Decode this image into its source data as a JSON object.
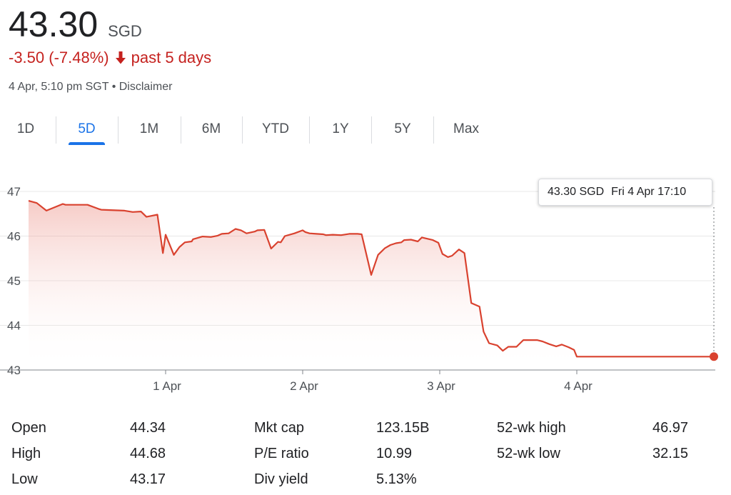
{
  "quote": {
    "price": "43.30",
    "currency": "SGD",
    "change": "-3.50 (-7.48%)",
    "period": "past 5 days",
    "timestamp": "4 Apr, 5:10 pm SGT",
    "separator": "•",
    "disclaimer": "Disclaimer"
  },
  "tabs": [
    {
      "label": "1D",
      "active": false
    },
    {
      "label": "5D",
      "active": true
    },
    {
      "label": "1M",
      "active": false
    },
    {
      "label": "6M",
      "active": false
    },
    {
      "label": "YTD",
      "active": false
    },
    {
      "label": "1Y",
      "active": false
    },
    {
      "label": "5Y",
      "active": false
    },
    {
      "label": "Max",
      "active": false
    }
  ],
  "tooltip": {
    "price": "43.30 SGD",
    "date": "Fri 4 Apr 17:10"
  },
  "colors": {
    "line": "#d9422f",
    "negative": "#c5221f",
    "active_tab": "#1a73e8",
    "grid": "#e8e8e8"
  },
  "chart_data": {
    "type": "area",
    "y_ticks": [
      "47",
      "46",
      "45",
      "44",
      "43"
    ],
    "ylim": [
      43,
      47
    ],
    "x_ticks": [
      {
        "label": "1 Apr",
        "x": 1
      },
      {
        "label": "2 Apr",
        "x": 2
      },
      {
        "label": "3 Apr",
        "x": 3
      },
      {
        "label": "4 Apr",
        "x": 4
      }
    ],
    "xlim": [
      0,
      5
    ],
    "grid": true,
    "series": [
      {
        "x": [
          0,
          0.06,
          0.13,
          0.25,
          0.27,
          0.43,
          0.51,
          0.53,
          0.7,
          0.76,
          0.82,
          0.86,
          0.89,
          0.94,
          0.98,
          1.0,
          1.06,
          1.1,
          1.14,
          1.19,
          1.2,
          1.27,
          1.33,
          1.38,
          1.41,
          1.46,
          1.51,
          1.55,
          1.59,
          1.65,
          1.67,
          1.72,
          1.77,
          1.82,
          1.84,
          1.87,
          1.94,
          2.0,
          2.02,
          2.05,
          2.1,
          2.15,
          2.17,
          2.22,
          2.28,
          2.34,
          2.4,
          2.43,
          2.5,
          2.55,
          2.6,
          2.64,
          2.68,
          2.72,
          2.74,
          2.79,
          2.84,
          2.87,
          2.95,
          2.99,
          3.02,
          3.06,
          3.09,
          3.14,
          3.18,
          3.23,
          3.29,
          3.32,
          3.36,
          3.42,
          3.46,
          3.5,
          3.56,
          3.61,
          3.66,
          3.71,
          3.75,
          3.8,
          3.85,
          3.89,
          3.94,
          3.98,
          4.0,
          4.04,
          4.1,
          4.15,
          4.2,
          4.26,
          4.3,
          4.35,
          4.41,
          4.48,
          4.54,
          4.58,
          4.61,
          4.65,
          4.69,
          4.72,
          4.76,
          4.81,
          4.85,
          4.87,
          4.9,
          4.92,
          4.95,
          5.0
        ],
        "y": [
          46.79,
          46.74,
          46.57,
          46.72,
          46.7,
          46.7,
          46.61,
          46.59,
          46.57,
          46.54,
          46.55,
          46.43,
          46.45,
          46.48,
          45.62,
          46.03,
          45.58,
          45.75,
          45.86,
          45.88,
          45.93,
          45.99,
          45.98,
          46.01,
          46.05,
          46.06,
          46.16,
          46.13,
          46.06,
          46.1,
          46.13,
          46.14,
          45.72,
          45.87,
          45.86,
          46.0,
          46.06,
          46.13,
          46.09,
          46.06,
          46.05,
          46.04,
          46.02,
          46.03,
          46.02,
          46.05,
          46.05,
          46.04,
          45.13,
          45.58,
          45.73,
          45.8,
          45.84,
          45.86,
          45.91,
          45.92,
          45.88,
          45.97,
          45.91,
          45.85,
          45.6,
          45.53,
          45.56,
          45.7,
          45.62,
          44.5,
          44.42,
          43.86,
          43.6,
          43.55,
          43.43,
          43.52,
          43.52,
          43.67,
          43.67,
          43.67,
          43.64,
          43.58,
          43.53,
          43.57,
          43.51,
          43.45,
          43.3,
          43.3,
          43.3,
          43.3,
          43.3,
          43.3,
          43.3,
          43.3,
          43.3,
          43.3,
          43.3,
          43.3,
          43.3,
          43.3,
          43.3,
          43.3,
          43.3,
          43.3,
          43.3,
          43.3,
          43.3,
          43.3,
          43.3,
          43.3
        ]
      }
    ]
  },
  "stats": [
    {
      "label": "Open",
      "value": "44.34"
    },
    {
      "label": "High",
      "value": "44.68"
    },
    {
      "label": "Low",
      "value": "43.17"
    },
    {
      "label": "Mkt cap",
      "value": "123.15B"
    },
    {
      "label": "P/E ratio",
      "value": "10.99"
    },
    {
      "label": "Div yield",
      "value": "5.13%"
    },
    {
      "label": "52-wk high",
      "value": "46.97"
    },
    {
      "label": "52-wk low",
      "value": "32.15"
    }
  ]
}
